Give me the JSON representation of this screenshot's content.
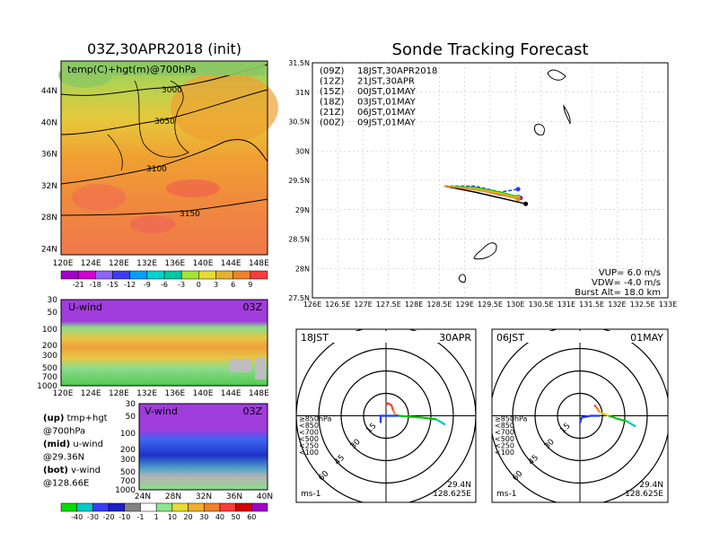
{
  "left_panel": {
    "title": "03Z,30APR2018 (init)",
    "map_label": "temp(C)+hgt(m)@700hPa",
    "lat_ticks": [
      "44N",
      "40N",
      "36N",
      "32N",
      "28N",
      "24N"
    ],
    "lon_ticks": [
      "120E",
      "124E",
      "128E",
      "132E",
      "136E",
      "140E",
      "144E",
      "148E"
    ],
    "contours": [
      "3000",
      "3050",
      "3100",
      "3150"
    ],
    "temp_colorbar": {
      "labels": [
        "-21",
        "-18",
        "-15",
        "-12",
        "-9",
        "-6",
        "-3",
        "0",
        "3",
        "6",
        "9"
      ],
      "colors": [
        "#a000c8",
        "#d200d2",
        "#8c64ff",
        "#3c3cff",
        "#00a0ff",
        "#00d2d2",
        "#00c8a0",
        "#a0e632",
        "#e6dc32",
        "#e6af2d",
        "#f08228",
        "#fa3c3c"
      ]
    }
  },
  "u_panel": {
    "label": "U-wind",
    "time": "03Z",
    "levels": [
      "30",
      "50",
      "100",
      "200",
      "300",
      "500",
      "700",
      "1000"
    ],
    "lon_ticks": [
      "120E",
      "124E",
      "128E",
      "132E",
      "136E",
      "140E",
      "144E",
      "148E"
    ]
  },
  "v_panel": {
    "label": "V-wind",
    "time": "03Z",
    "levels": [
      "30",
      "50",
      "100",
      "200",
      "300",
      "500",
      "700",
      "1000"
    ],
    "lat_ticks": [
      "24N",
      "28N",
      "32N",
      "36N",
      "40N"
    ],
    "wind_colorbar": {
      "labels": [
        "-40",
        "-30",
        "-20",
        "-10",
        "-1",
        "1",
        "10",
        "20",
        "30",
        "40",
        "50",
        "60"
      ],
      "colors": [
        "#00dc00",
        "#00c8c8",
        "#3c3cff",
        "#1e1ec8",
        "#828282",
        "#ffffff",
        "#8ce68c",
        "#e6dc32",
        "#f0af2d",
        "#f08228",
        "#fa3c3c",
        "#d20000",
        "#a000c8"
      ]
    }
  },
  "legend_text": [
    {
      "bold": "(up)",
      "rest": " tmp+hgt"
    },
    {
      "bold": "",
      "rest": "     @700hPa"
    },
    {
      "bold": "(mid)",
      "rest": " u-wind"
    },
    {
      "bold": "",
      "rest": "     @29.36N"
    },
    {
      "bold": "(bot)",
      "rest": " v-wind"
    },
    {
      "bold": "",
      "rest": "     @128.66E"
    }
  ],
  "track_panel": {
    "title": "Sonde Tracking Forecast",
    "series": [
      {
        "code": "(09Z)",
        "label": "18JST,30APR2018",
        "color": "#000000"
      },
      {
        "code": "(12Z)",
        "label": "21JST,30APR",
        "color": "#a000c8"
      },
      {
        "code": "(15Z)",
        "label": "00JST,01MAY",
        "color": "#1e3cff"
      },
      {
        "code": "(18Z)",
        "label": "03JST,01MAY",
        "color": "#00c800"
      },
      {
        "code": "(21Z)",
        "label": "06JST,01MAY",
        "color": "#e6c800"
      },
      {
        "code": "(00Z)",
        "label": "09JST,01MAY",
        "color": "#f08228"
      }
    ],
    "params": [
      "VUP= 6.0 m/s",
      "VDW= -4.0 m/s",
      "Burst Alt= 18.0 km"
    ],
    "lat_ticks": [
      "31.5N",
      "31N",
      "30.5N",
      "30N",
      "29.5N",
      "29N",
      "28.5N",
      "28N",
      "27.5N"
    ],
    "lon_ticks": [
      "126E",
      "126.5E",
      "127E",
      "127.5E",
      "128E",
      "128.5E",
      "129E",
      "129.5E",
      "130E",
      "130.5E",
      "131E",
      "131.5E",
      "132E",
      "132.5E",
      "133E"
    ]
  },
  "hodo_left": {
    "time": "18JST",
    "date": "30APR",
    "rings": [
      "15",
      "30",
      "45",
      "60"
    ],
    "levels": [
      "≥850hPa",
      "<850",
      "<700",
      "<500",
      "<250",
      "<100"
    ],
    "level_colors": [
      "#fa3c3c",
      "#f08228",
      "#e6c800",
      "#00c800",
      "#00c8c8",
      "#1e3cff"
    ],
    "lat": "29.4N",
    "lon": "128.625E",
    "unit": "ms-1"
  },
  "hodo_right": {
    "time": "06JST",
    "date": "01MAY",
    "rings": [
      "15",
      "30",
      "45",
      "60"
    ],
    "levels": [
      "≥850hPa",
      "<850",
      "<700",
      "<500",
      "<250",
      "<100"
    ],
    "level_colors": [
      "#fa3c3c",
      "#f08228",
      "#e6c800",
      "#00c800",
      "#00c8c8",
      "#1e3cff"
    ],
    "lat": "29.4N",
    "lon": "128.625E",
    "unit": "ms-1"
  },
  "chart_data": [
    {
      "type": "heatmap",
      "title": "03Z,30APR2018 (init)",
      "label": "temp(C)+hgt(m)@700hPa",
      "contour_values": [
        3000,
        3050,
        3100,
        3150
      ],
      "x_range": [
        "120E",
        "150E"
      ],
      "y_range": [
        "22N",
        "48N"
      ]
    },
    {
      "type": "heatmap",
      "label": "U-wind",
      "time": "03Z",
      "x_range": [
        "120E",
        "150E"
      ],
      "y_levels_hPa": [
        30,
        50,
        100,
        200,
        300,
        500,
        700,
        1000
      ]
    },
    {
      "type": "heatmap",
      "label": "V-wind",
      "time": "03Z",
      "x_range": [
        "24N",
        "40N"
      ],
      "y_levels_hPa": [
        30,
        50,
        100,
        200,
        300,
        500,
        700,
        1000
      ]
    },
    {
      "type": "line",
      "title": "Sonde Tracking Forecast",
      "xlim": [
        126,
        133
      ],
      "ylim": [
        27.5,
        31.5
      ],
      "series": [
        {
          "name": "(09Z) 18JST,30APR2018",
          "x": [
            128.6,
            129.2,
            129.7,
            130.2
          ],
          "y": [
            29.4,
            29.3,
            29.2,
            29.1
          ]
        },
        {
          "name": "(12Z) 21JST,30APR",
          "x": [
            128.6,
            129.2,
            129.7,
            130.1
          ],
          "y": [
            29.4,
            29.35,
            29.25,
            29.2
          ]
        },
        {
          "name": "(15Z) 00JST,01MAY",
          "x": [
            128.6,
            129.2,
            129.7,
            130.05
          ],
          "y": [
            29.4,
            29.4,
            29.3,
            29.35
          ]
        },
        {
          "name": "(18Z) 03JST,01MAY",
          "x": [
            128.6,
            129.2,
            129.7,
            130.05
          ],
          "y": [
            29.4,
            29.38,
            29.3,
            29.22
          ]
        },
        {
          "name": "(21Z) 06JST,01MAY",
          "x": [
            128.6,
            129.2,
            129.7,
            130.05
          ],
          "y": [
            29.4,
            29.36,
            29.28,
            29.2
          ]
        },
        {
          "name": "(00Z) 09JST,01MAY",
          "x": [
            128.6,
            129.2,
            129.7,
            130.05
          ],
          "y": [
            29.4,
            29.34,
            29.26,
            29.18
          ]
        }
      ]
    },
    {
      "type": "line",
      "title": "hodograph 18JST 30APR",
      "rings": [
        15,
        30,
        45,
        60
      ]
    },
    {
      "type": "line",
      "title": "hodograph 06JST 01MAY",
      "rings": [
        15,
        30,
        45,
        60
      ]
    }
  ]
}
